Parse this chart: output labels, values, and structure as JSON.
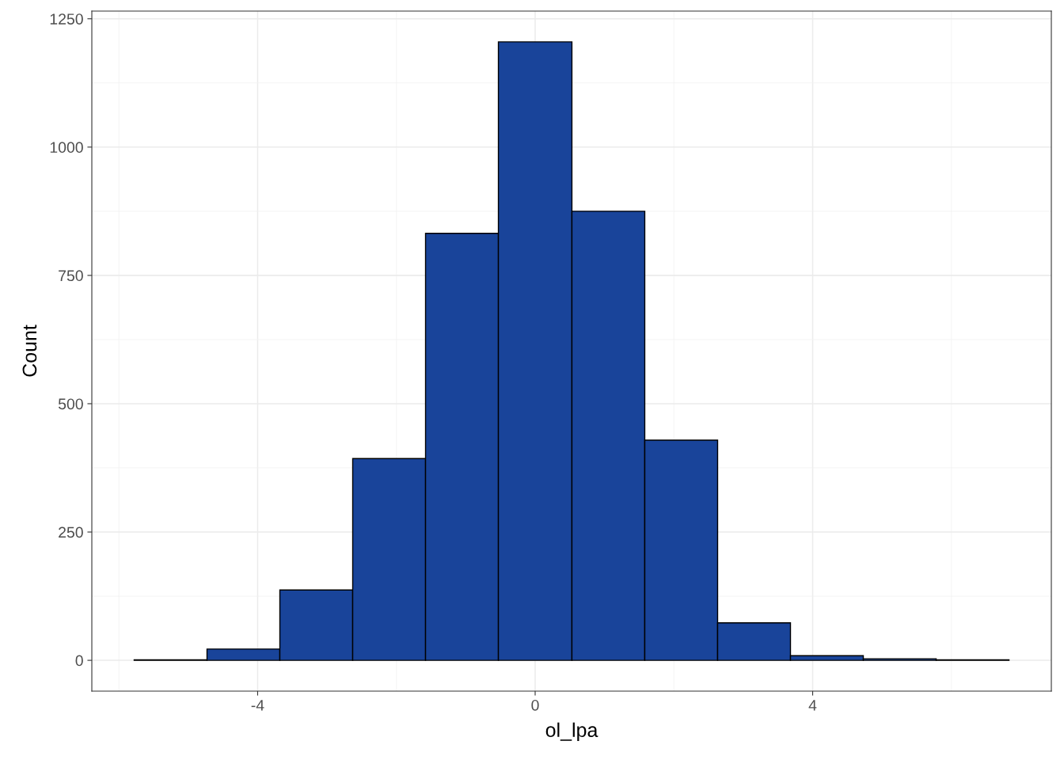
{
  "chart_data": {
    "type": "histogram",
    "xlabel": "ol_lpa",
    "ylabel": "Count",
    "bins": [
      -5.78,
      -4.73,
      -3.68,
      -2.63,
      -1.58,
      -0.53,
      0.53,
      1.58,
      2.63,
      3.68,
      4.73,
      5.78,
      6.83
    ],
    "values": [
      1,
      22,
      137,
      393,
      832,
      1205,
      875,
      429,
      73,
      9,
      3,
      1
    ],
    "color": "#19449a",
    "xlim": [
      -6.39,
      7.44
    ],
    "ylim": [
      -60,
      1265
    ],
    "xticks": [
      -4,
      0,
      4
    ],
    "yticks": [
      0,
      250,
      500,
      750,
      1000,
      1250
    ],
    "grid": true
  }
}
